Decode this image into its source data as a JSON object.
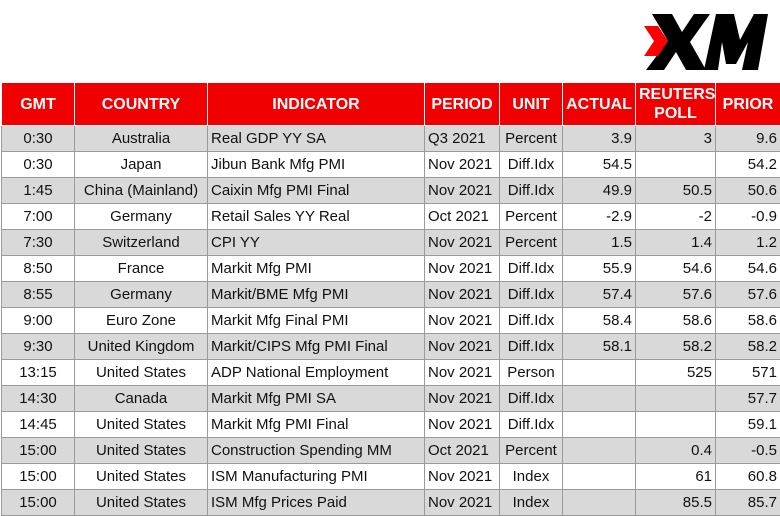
{
  "brand": {
    "logo_text": "XM",
    "accent": "#ff0000"
  },
  "table": {
    "headers": [
      "GMT",
      "COUNTRY",
      "INDICATOR",
      "PERIOD",
      "UNIT",
      "ACTUAL",
      "REUTERS POLL",
      "PRIOR"
    ],
    "rows": [
      [
        "0:30",
        "Australia",
        "Real GDP YY SA",
        "Q3 2021",
        "Percent",
        "3.9",
        "3",
        "9.6"
      ],
      [
        "0:30",
        "Japan",
        "Jibun Bank Mfg PMI",
        "Nov 2021",
        "Diff.Idx",
        "54.5",
        "",
        "54.2"
      ],
      [
        "1:45",
        "China (Mainland)",
        "Caixin Mfg PMI Final",
        "Nov 2021",
        "Diff.Idx",
        "49.9",
        "50.5",
        "50.6"
      ],
      [
        "7:00",
        "Germany",
        "Retail Sales YY Real",
        "Oct 2021",
        "Percent",
        "-2.9",
        "-2",
        "-0.9"
      ],
      [
        "7:30",
        "Switzerland",
        "CPI YY",
        "Nov 2021",
        "Percent",
        "1.5",
        "1.4",
        "1.2"
      ],
      [
        "8:50",
        "France",
        "Markit Mfg PMI",
        "Nov 2021",
        "Diff.Idx",
        "55.9",
        "54.6",
        "54.6"
      ],
      [
        "8:55",
        "Germany",
        "Markit/BME Mfg PMI",
        "Nov 2021",
        "Diff.Idx",
        "57.4",
        "57.6",
        "57.6"
      ],
      [
        "9:00",
        "Euro Zone",
        "Markit Mfg Final PMI",
        "Nov 2021",
        "Diff.Idx",
        "58.4",
        "58.6",
        "58.6"
      ],
      [
        "9:30",
        "United Kingdom",
        "Markit/CIPS Mfg PMI Final",
        "Nov 2021",
        "Diff.Idx",
        "58.1",
        "58.2",
        "58.2"
      ],
      [
        "13:15",
        "United States",
        "ADP National Employment",
        "Nov 2021",
        "Person",
        "",
        "525",
        "571"
      ],
      [
        "14:30",
        "Canada",
        "Markit Mfg PMI SA",
        "Nov 2021",
        "Diff.Idx",
        "",
        "",
        "57.7"
      ],
      [
        "14:45",
        "United States",
        "Markit Mfg PMI Final",
        "Nov 2021",
        "Diff.Idx",
        "",
        "",
        "59.1"
      ],
      [
        "15:00",
        "United States",
        "Construction Spending MM",
        "Oct 2021",
        "Percent",
        "",
        "0.4",
        "-0.5"
      ],
      [
        "15:00",
        "United States",
        "ISM Manufacturing PMI",
        "Nov 2021",
        "Index",
        "",
        "61",
        "60.8"
      ],
      [
        "15:00",
        "United States",
        "ISM Mfg Prices Paid",
        "Nov 2021",
        "Index",
        "",
        "85.5",
        "85.7"
      ]
    ]
  }
}
